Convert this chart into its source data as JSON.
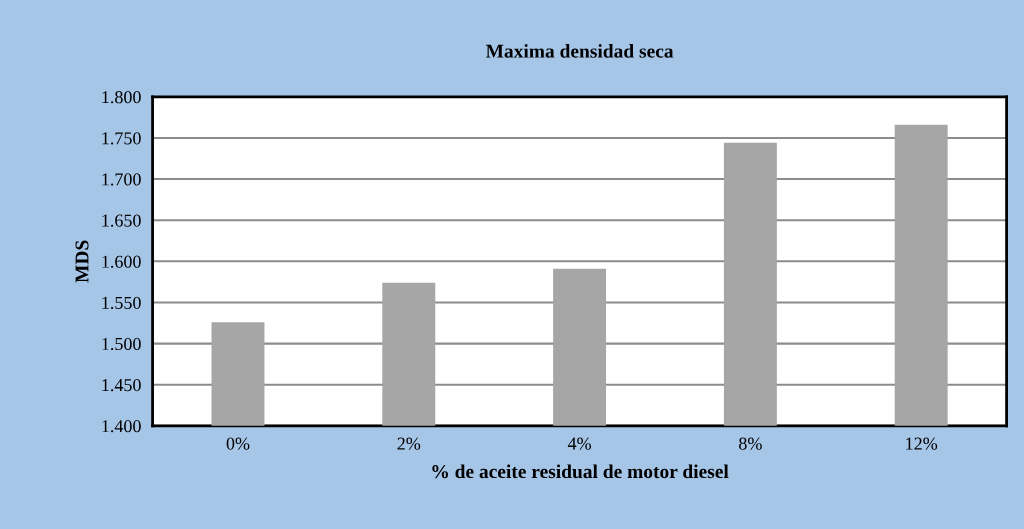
{
  "chart_data": {
    "type": "bar",
    "title": "Maxima densidad seca",
    "xlabel": "% de aceite residual de motor diesel",
    "ylabel": "MDS",
    "categories": [
      "0%",
      "2%",
      "4%",
      "8%",
      "12%"
    ],
    "values": [
      1.526,
      1.574,
      1.591,
      1.744,
      1.766
    ],
    "color": "#a6a6a6",
    "ylim": [
      1.4,
      1.8
    ],
    "yticks": [
      {
        "value": 1.4,
        "label": "1.400"
      },
      {
        "value": 1.45,
        "label": "1.450"
      },
      {
        "value": 1.5,
        "label": "1.500"
      },
      {
        "value": 1.55,
        "label": "1.550"
      },
      {
        "value": 1.6,
        "label": "1.600"
      },
      {
        "value": 1.65,
        "label": "1.650"
      },
      {
        "value": 1.7,
        "label": "1.700"
      },
      {
        "value": 1.75,
        "label": "1.750"
      },
      {
        "value": 1.8,
        "label": "1.800"
      }
    ],
    "grid": "y",
    "legend": false
  }
}
